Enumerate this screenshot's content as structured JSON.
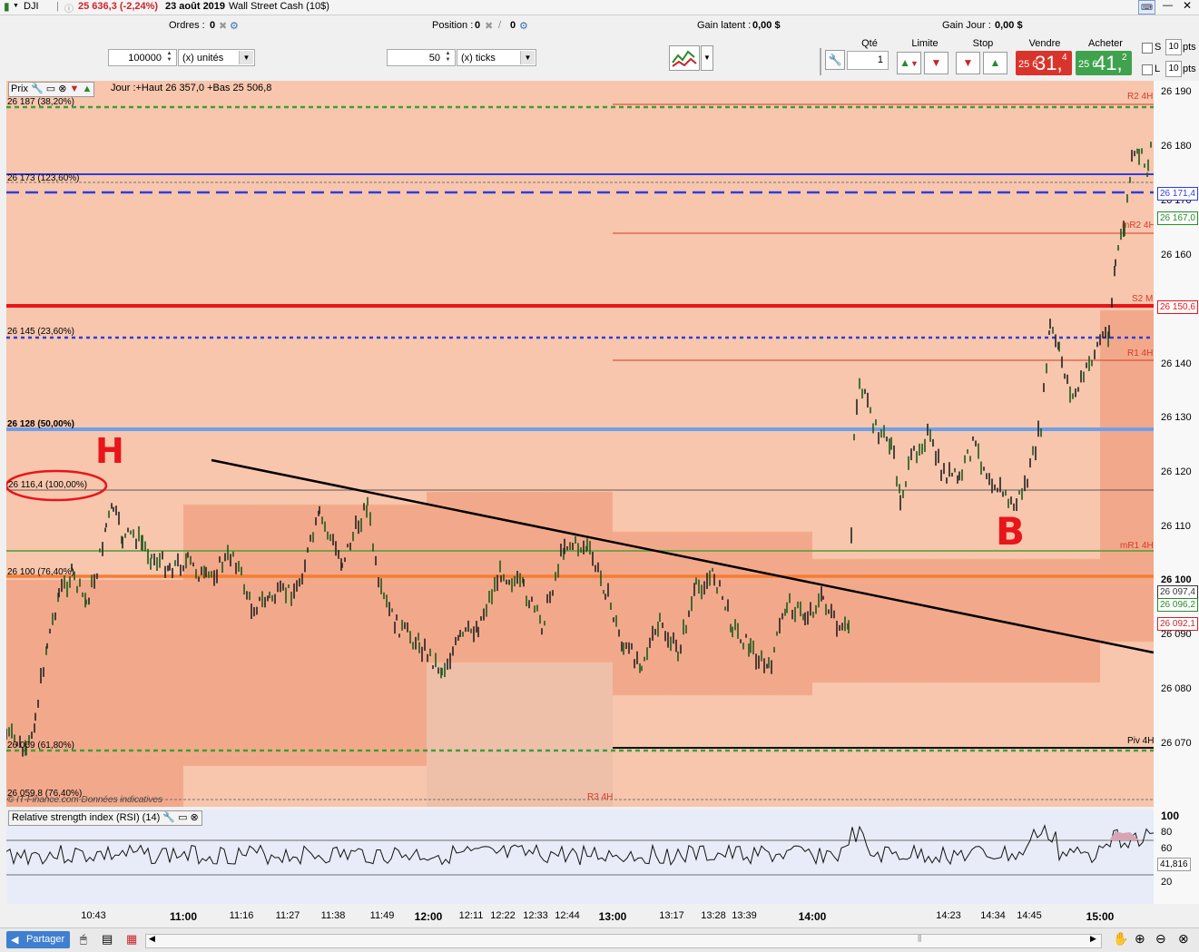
{
  "title_bar": {
    "symbol": "DJI",
    "price_change": "25 636,3 (-2,24%)",
    "date": "23 août 2019",
    "instrument": "Wall Street Cash (10$)"
  },
  "toolbar": {
    "orders_label": "Ordres :",
    "orders_value": "0",
    "position_label": "Position :",
    "position_value": "0",
    "unrealized_label": "Gain latent :",
    "unrealized_value": "0,00 $",
    "daily_label": "Gain Jour :",
    "daily_value": "0,00 $",
    "qty_value": "100000",
    "qty_unit": "(x) unités",
    "ticks_value": "50",
    "ticks_unit": "(x) ticks"
  },
  "order_panel": {
    "qty_header": "Qté",
    "qty_value": "1",
    "limit_header": "Limite",
    "stop_header": "Stop",
    "sell_header": "Vendre",
    "buy_header": "Acheter",
    "sell_small": "25 6",
    "sell_big": "31,",
    "sell_sup": "4",
    "buy_small": "25 6",
    "buy_big": "41,",
    "buy_sup": "2",
    "s_label": "S",
    "s_value": "10",
    "l_label": "L",
    "l_value": "10",
    "pts": "pts",
    "colors": {
      "sell": "#d9342b",
      "buy": "#3fa34d"
    }
  },
  "chart_header": {
    "prix_label": "Prix",
    "info": "Jour :+Haut 26 357,0 +Bas 25 506,8"
  },
  "fib_labels": {
    "l1": "26 187 (38,20%)",
    "l2": "26 173 (123,60%)",
    "l3": "26 145 (23,60%)",
    "l4": "26 128 (50,00%)",
    "l5": "26 116,4 (100,00%)",
    "l6": "26 100 (76,40%)",
    "l7": "26 069 (61,80%)",
    "l8": "26 059,8 (76,40%)"
  },
  "pivot_labels": {
    "r2": "R2 4H",
    "mr2": "mR2 4H",
    "s2m": "S2 M",
    "r1": "R1 4H",
    "mr1": "mR1 4H",
    "piv": "Piv 4H",
    "r3": "R3 4H",
    "watermark": "© IT-Finance.com  Données indicatives"
  },
  "annotations": {
    "h": "H",
    "b": "B"
  },
  "y_axis": {
    "ticks": [
      "26 190",
      "26 180",
      "26 170",
      "26 160",
      "26 150",
      "26 140",
      "26 130",
      "26 120",
      "26 110",
      "26 100",
      "26 090",
      "26 080",
      "26 070"
    ],
    "flags": [
      "26 171,4",
      "26 167,0",
      "26 150,6",
      "26 097,4",
      "26 096,2",
      "26 092,1"
    ],
    "rsi_ticks": [
      "100",
      "80",
      "60",
      "40",
      "20"
    ],
    "rsi_flag": "41,816"
  },
  "rsi": {
    "title": "Relative strength index (RSI) (14)"
  },
  "x_axis": {
    "ticks": [
      "10:43",
      "11:00",
      "11:16",
      "11:27",
      "11:38",
      "11:49",
      "12:00",
      "12:11",
      "12:22",
      "12:33",
      "12:44",
      "13:00",
      "13:17",
      "13:28",
      "13:39",
      "14:00",
      "14:23",
      "14:34",
      "14:45",
      "15:00"
    ]
  },
  "statusbar": {
    "share_label": "Partager"
  }
}
